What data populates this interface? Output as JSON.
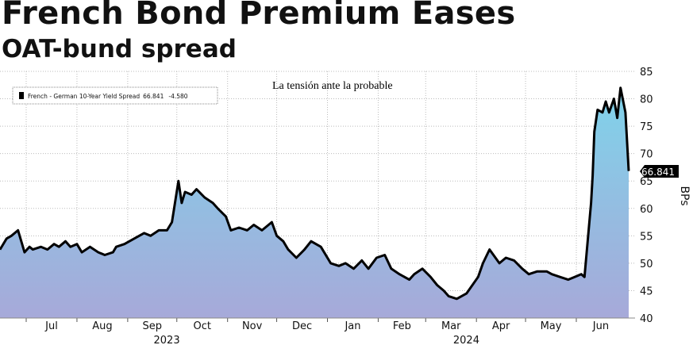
{
  "title": "French Bond Premium Eases",
  "subtitle": "OAT-bund spread",
  "overlay_text": "La tensión ante la probable",
  "legend": {
    "label": "French - German 10-Year Yield Spread",
    "last": "66.841",
    "change": "-4.580"
  },
  "colors": {
    "line": "#000000",
    "fill_top": "#7fd3ea",
    "fill_bottom": "#a7a9d9",
    "grid": "#bbbbbb"
  },
  "chart_data": {
    "type": "area",
    "title": "French Bond Premium Eases",
    "subtitle": "OAT-bund spread",
    "ylabel": "BPs",
    "xlabel": "",
    "ylim": [
      40,
      85
    ],
    "yticks": [
      "40",
      "45",
      "50",
      "55",
      "60",
      "65",
      "70",
      "75",
      "80",
      "85"
    ],
    "x_month_labels": [
      "Jul",
      "Aug",
      "Sep",
      "Oct",
      "Nov",
      "Dec",
      "Jan",
      "Feb",
      "Mar",
      "Apr",
      "May",
      "Jun"
    ],
    "x_year_labels": [
      "2023",
      "2024"
    ],
    "last_value_label": "66.841",
    "legend_position": "top-left",
    "grid": true,
    "series": [
      {
        "name": "French - German 10-Year Yield Spread",
        "x": [
          "2023-06-15",
          "2023-06-19",
          "2023-06-22",
          "2023-06-26",
          "2023-06-28",
          "2023-06-30",
          "2023-07-03",
          "2023-07-05",
          "2023-07-10",
          "2023-07-14",
          "2023-07-18",
          "2023-07-21",
          "2023-07-25",
          "2023-07-28",
          "2023-08-01",
          "2023-08-04",
          "2023-08-09",
          "2023-08-14",
          "2023-08-18",
          "2023-08-23",
          "2023-08-25",
          "2023-08-30",
          "2023-09-05",
          "2023-09-11",
          "2023-09-15",
          "2023-09-20",
          "2023-09-25",
          "2023-09-28",
          "2023-10-02",
          "2023-10-04",
          "2023-10-06",
          "2023-10-10",
          "2023-10-13",
          "2023-10-18",
          "2023-10-23",
          "2023-10-26",
          "2023-10-31",
          "2023-11-03",
          "2023-11-08",
          "2023-11-13",
          "2023-11-17",
          "2023-11-22",
          "2023-11-28",
          "2023-12-01",
          "2023-12-05",
          "2023-12-08",
          "2023-12-13",
          "2023-12-18",
          "2023-12-22",
          "2023-12-28",
          "2024-01-03",
          "2024-01-08",
          "2024-01-12",
          "2024-01-17",
          "2024-01-22",
          "2024-01-26",
          "2024-01-31",
          "2024-02-05",
          "2024-02-09",
          "2024-02-14",
          "2024-02-20",
          "2024-02-23",
          "2024-02-28",
          "2024-03-04",
          "2024-03-08",
          "2024-03-12",
          "2024-03-15",
          "2024-03-20",
          "2024-03-26",
          "2024-04-02",
          "2024-04-05",
          "2024-04-09",
          "2024-04-15",
          "2024-04-19",
          "2024-04-24",
          "2024-04-29",
          "2024-05-03",
          "2024-05-08",
          "2024-05-14",
          "2024-05-17",
          "2024-05-22",
          "2024-05-27",
          "2024-05-31",
          "2024-06-04",
          "2024-06-06",
          "2024-06-10",
          "2024-06-11",
          "2024-06-12",
          "2024-06-14",
          "2024-06-17",
          "2024-06-19",
          "2024-06-21",
          "2024-06-24",
          "2024-06-26",
          "2024-06-28",
          "2024-07-01",
          "2024-07-03"
        ],
        "values": [
          52.5,
          54.5,
          55,
          56,
          54,
          52,
          53,
          52.5,
          53,
          52.5,
          53.5,
          53,
          54,
          53,
          53.5,
          52,
          53,
          52,
          51.5,
          52,
          53,
          53.5,
          54.5,
          55.5,
          55,
          56,
          56,
          57.5,
          65,
          61,
          63,
          62.5,
          63.5,
          62,
          61,
          60,
          58.5,
          56,
          56.5,
          56,
          57,
          56,
          57.5,
          55,
          54,
          52.5,
          51,
          52.5,
          54,
          53,
          50,
          49.5,
          50,
          49,
          50.5,
          49,
          51,
          51.5,
          49,
          48,
          47,
          48,
          49,
          47.5,
          46,
          45,
          44,
          43.5,
          44.5,
          47.5,
          50,
          52.5,
          50,
          51,
          50.5,
          49,
          48,
          48.5,
          48.5,
          48,
          47.5,
          47,
          47.5,
          48,
          47.5,
          61,
          66,
          74,
          78,
          77.5,
          79.5,
          77.5,
          80,
          76.5,
          82,
          77.5,
          66.841
        ]
      }
    ]
  }
}
